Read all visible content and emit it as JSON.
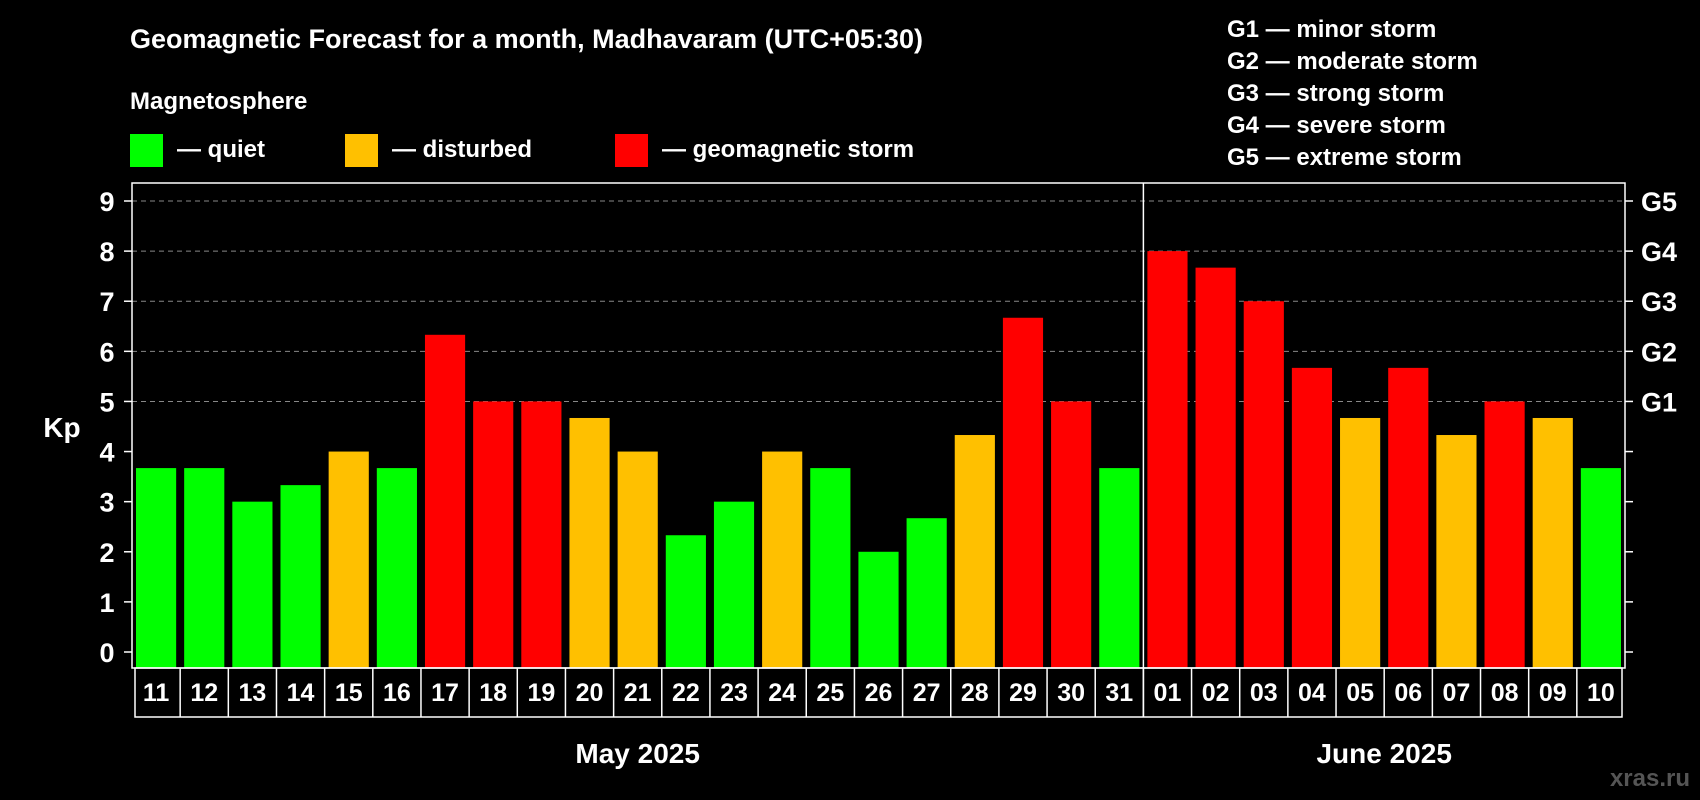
{
  "chart_data": {
    "type": "bar",
    "title": "Geomagnetic Forecast for a month, Madhavaram (UTC+05:30)",
    "legend_title": "Magnetosphere",
    "legend": [
      {
        "key": "quiet",
        "label": "— quiet",
        "color": "#00ff00"
      },
      {
        "key": "disturbed",
        "label": "— disturbed",
        "color": "#ffc000"
      },
      {
        "key": "storm",
        "label": "— geomagnetic storm",
        "color": "#ff0000"
      }
    ],
    "g_scale": [
      "G1 — minor storm",
      "G2 — moderate storm",
      "G3 — strong storm",
      "G4 — severe storm",
      "G5 — extreme storm"
    ],
    "ylabel": "Kp",
    "ylim": [
      0,
      9
    ],
    "yticks": [
      "0",
      "1",
      "2",
      "3",
      "4",
      "5",
      "6",
      "7",
      "8",
      "9"
    ],
    "right_ticks": [
      {
        "value": 5,
        "label": "G1"
      },
      {
        "value": 6,
        "label": "G2"
      },
      {
        "value": 7,
        "label": "G3"
      },
      {
        "value": 8,
        "label": "G4"
      },
      {
        "value": 9,
        "label": "G5"
      }
    ],
    "grid": true,
    "categories": [
      "11",
      "12",
      "13",
      "14",
      "15",
      "16",
      "17",
      "18",
      "19",
      "20",
      "21",
      "22",
      "23",
      "24",
      "25",
      "26",
      "27",
      "28",
      "29",
      "30",
      "31",
      "01",
      "02",
      "03",
      "04",
      "05",
      "06",
      "07",
      "08",
      "09",
      "10"
    ],
    "values": [
      3.67,
      3.67,
      3,
      3.33,
      4,
      3.67,
      6.33,
      5,
      5,
      4.67,
      4,
      2.33,
      3,
      4,
      3.67,
      2,
      2.67,
      4.33,
      6.67,
      5,
      3.67,
      8,
      7.67,
      7,
      5.67,
      4.67,
      5.67,
      4.33,
      5,
      4.67,
      3.67
    ],
    "status": [
      "quiet",
      "quiet",
      "quiet",
      "quiet",
      "disturbed",
      "quiet",
      "storm",
      "storm",
      "storm",
      "disturbed",
      "disturbed",
      "quiet",
      "quiet",
      "disturbed",
      "quiet",
      "quiet",
      "quiet",
      "disturbed",
      "storm",
      "storm",
      "quiet",
      "storm",
      "storm",
      "storm",
      "storm",
      "disturbed",
      "storm",
      "disturbed",
      "storm",
      "disturbed",
      "quiet"
    ],
    "months": [
      {
        "label": "May 2025",
        "count": 21
      },
      {
        "label": "June 2025",
        "count": 10
      }
    ]
  },
  "watermark": "xras.ru"
}
